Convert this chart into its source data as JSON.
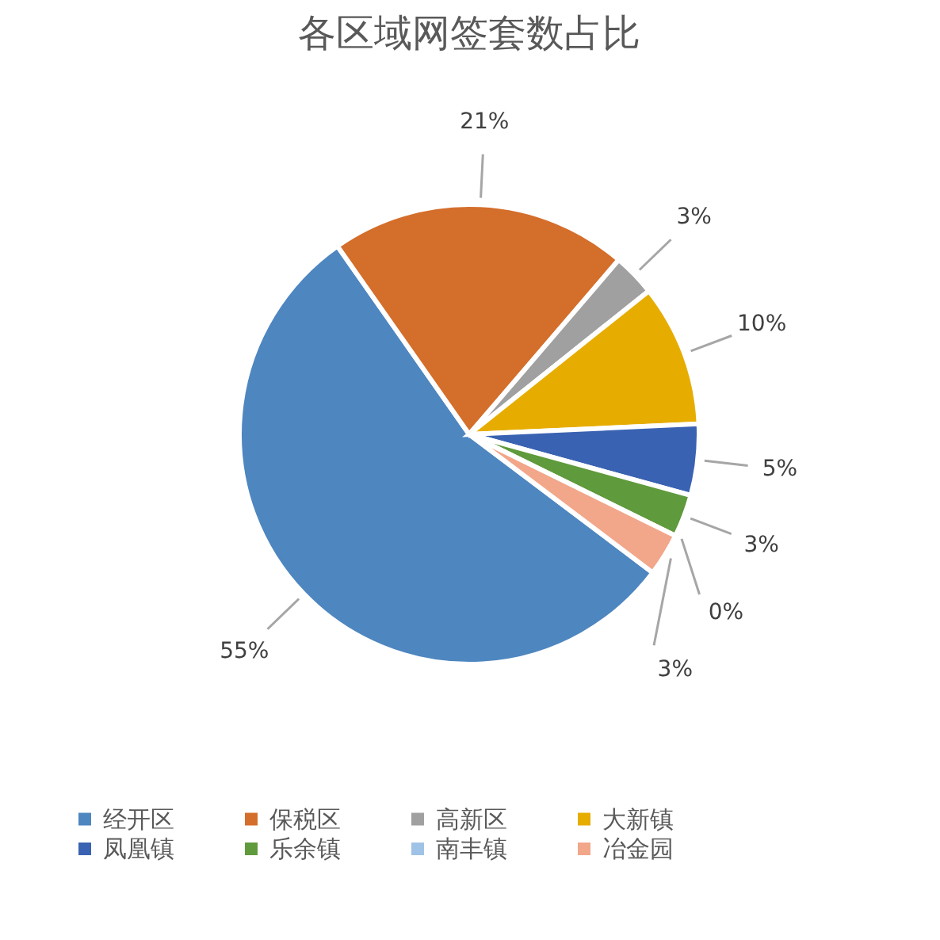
{
  "chart_data": {
    "type": "pie",
    "title": "各区域网签套数占比",
    "categories": [
      "经开区",
      "保税区",
      "高新区",
      "大新镇",
      "凤凰镇",
      "乐余镇",
      "南丰镇",
      "冶金园"
    ],
    "values": [
      55,
      21,
      3,
      10,
      5,
      3,
      0,
      3
    ],
    "colors": [
      "#4e86c0",
      "#d46e2b",
      "#a0a0a0",
      "#e6ad00",
      "#3a62b2",
      "#5f9a3c",
      "#9ec3e6",
      "#f2a68a"
    ],
    "value_labels": [
      "55%",
      "21%",
      "3%",
      "10%",
      "5%",
      "3%",
      "0%",
      "3%"
    ],
    "legend": "bottom"
  }
}
